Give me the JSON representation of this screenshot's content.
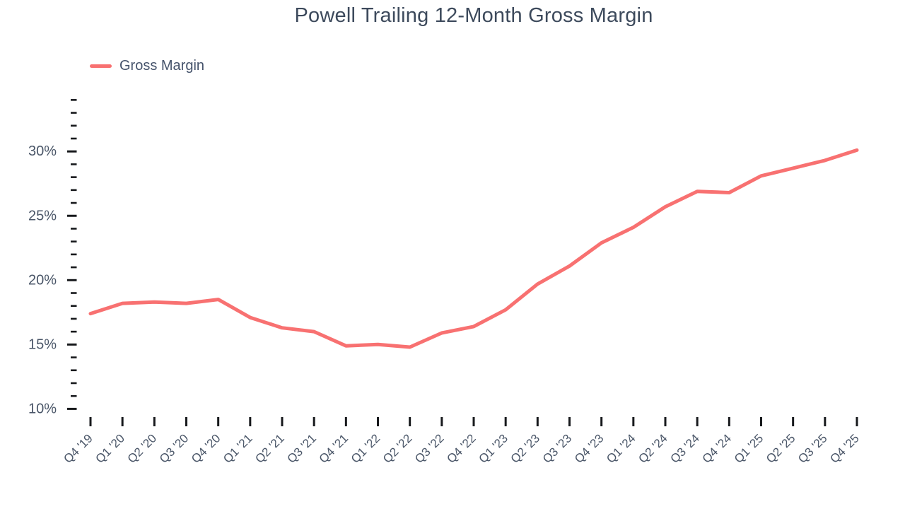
{
  "page": {
    "title": "Powell Trailing 12-Month Gross Margin"
  },
  "legend": {
    "label": "Gross Margin"
  },
  "chart_data": {
    "type": "line",
    "title": "Powell Trailing 12-Month Gross Margin",
    "categories": [
      "Q4 '19",
      "Q1 '20",
      "Q2 '20",
      "Q3 '20",
      "Q4 '20",
      "Q1 '21",
      "Q2 '21",
      "Q3 '21",
      "Q4 '21",
      "Q1 '22",
      "Q2 '22",
      "Q3 '22",
      "Q4 '22",
      "Q1 '23",
      "Q2 '23",
      "Q3 '23",
      "Q4 '23",
      "Q1 '24",
      "Q2 '24",
      "Q3 '24",
      "Q4 '24",
      "Q1 '25",
      "Q2 '25",
      "Q3 '25",
      "Q4 '25"
    ],
    "series": [
      {
        "name": "Gross Margin",
        "color": "#f87171",
        "values": [
          17.4,
          18.2,
          18.3,
          18.2,
          18.5,
          17.1,
          16.3,
          16.0,
          14.9,
          15.0,
          14.8,
          15.9,
          16.4,
          17.7,
          19.7,
          21.1,
          22.9,
          24.1,
          25.7,
          26.9,
          26.8,
          28.1,
          28.7,
          29.3,
          30.1
        ]
      }
    ],
    "unit": "%",
    "xlabel": "",
    "ylabel": "",
    "ylim": [
      10,
      34
    ],
    "y_major_ticks": [
      10,
      15,
      20,
      25,
      30
    ],
    "y_major_tick_labels": [
      "10%",
      "15%",
      "20%",
      "25%",
      "30%"
    ],
    "y_minor_step": 1,
    "grid": false,
    "legend_position": "top-left",
    "colors": {
      "line": "#f87171",
      "title_text": "#3d4a5c",
      "axis_label_text": "#4a5668",
      "tick_mark": "#17191c",
      "background": "#ffffff"
    }
  }
}
